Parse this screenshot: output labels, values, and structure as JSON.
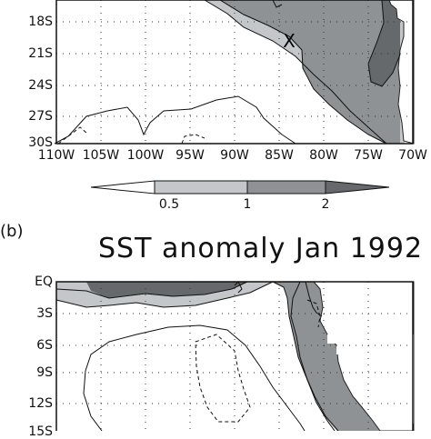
{
  "panel_a": {
    "lat_labels": [
      "18S",
      "21S",
      "24S",
      "27S",
      "30S"
    ],
    "lon_labels": [
      "110W",
      "105W",
      "100W",
      "95W",
      "90W",
      "85W",
      "80W",
      "75W",
      "70W"
    ],
    "marker": "X"
  },
  "colorbar": {
    "labels": [
      "0.5",
      "1",
      "2"
    ],
    "colors": [
      "#ffffff",
      "#c3c7c9",
      "#8e9294",
      "#65696b"
    ]
  },
  "panel_b": {
    "letter": "(b)",
    "title": "SST anomaly Jan 1992",
    "lat_labels": [
      "EQ",
      "3S",
      "6S",
      "9S",
      "12S",
      "15S"
    ]
  },
  "shading": {
    "light": "#c3c7c9",
    "medium": "#8e9294",
    "dark": "#65696b",
    "land": "#ffffff"
  }
}
